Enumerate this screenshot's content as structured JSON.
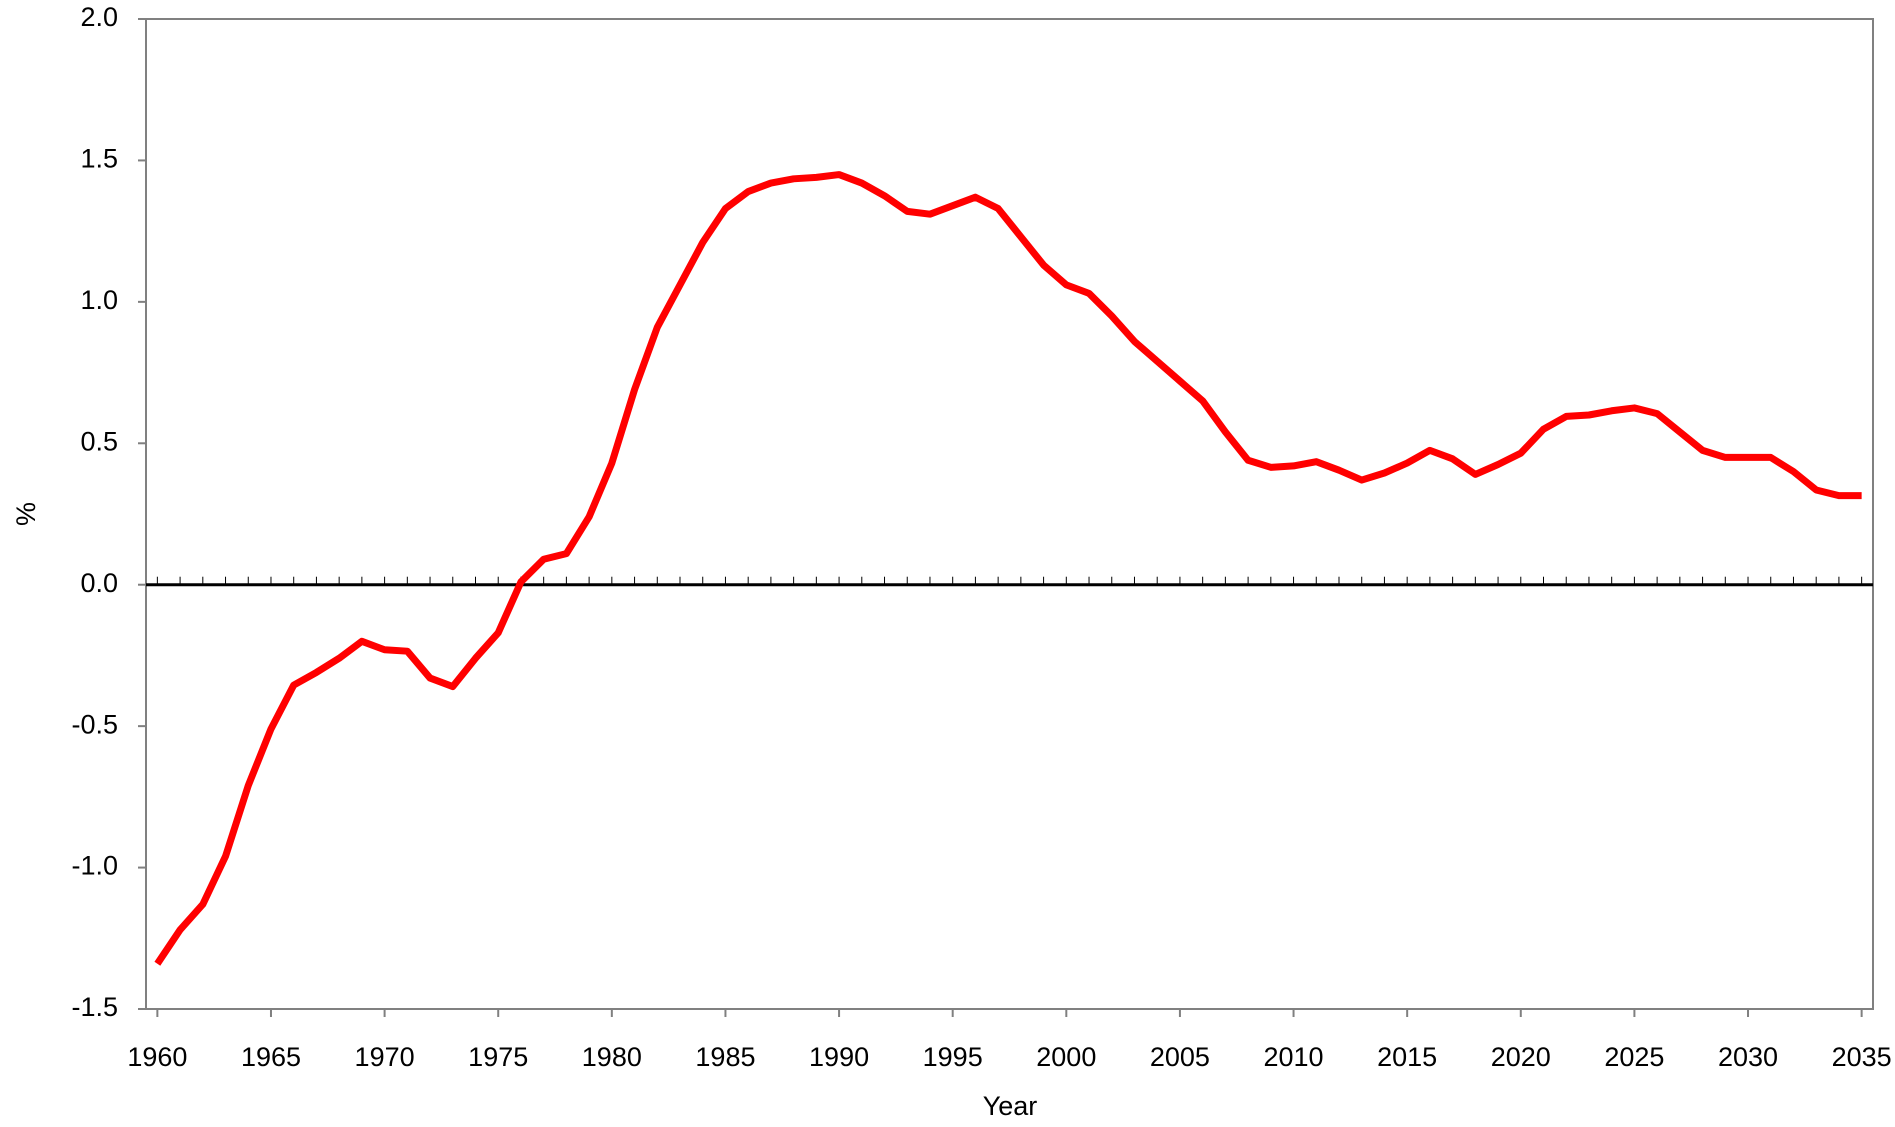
{
  "chart_data": {
    "type": "line",
    "x_label": "Year",
    "y_label": "%",
    "x": [
      1960,
      1961,
      1962,
      1963,
      1964,
      1965,
      1966,
      1967,
      1968,
      1969,
      1970,
      1971,
      1972,
      1973,
      1974,
      1975,
      1976,
      1977,
      1978,
      1979,
      1980,
      1981,
      1982,
      1983,
      1984,
      1985,
      1986,
      1987,
      1988,
      1989,
      1990,
      1991,
      1992,
      1993,
      1994,
      1995,
      1996,
      1997,
      1998,
      1999,
      2000,
      2001,
      2002,
      2003,
      2004,
      2005,
      2006,
      2007,
      2008,
      2009,
      2010,
      2011,
      2012,
      2013,
      2014,
      2015,
      2016,
      2017,
      2018,
      2019,
      2020,
      2021,
      2022,
      2023,
      2024,
      2025,
      2026,
      2027,
      2028,
      2029,
      2030,
      2031,
      2032,
      2033,
      2034,
      2035
    ],
    "series": [
      {
        "color": "#ff0000",
        "values": [
          -1.34,
          -1.22,
          -1.13,
          -0.96,
          -0.71,
          -0.51,
          -0.355,
          -0.31,
          -0.26,
          -0.2,
          -0.23,
          -0.235,
          -0.33,
          -0.36,
          -0.26,
          -0.17,
          0.01,
          0.09,
          0.11,
          0.24,
          0.43,
          0.69,
          0.91,
          1.06,
          1.21,
          1.33,
          1.39,
          1.42,
          1.435,
          1.44,
          1.45,
          1.42,
          1.375,
          1.32,
          1.31,
          1.34,
          1.37,
          1.33,
          1.23,
          1.13,
          1.06,
          1.03,
          0.95,
          0.86,
          0.79,
          0.72,
          0.65,
          0.54,
          0.44,
          0.415,
          0.42,
          0.435,
          0.405,
          0.37,
          0.395,
          0.43,
          0.475,
          0.445,
          0.39,
          0.425,
          0.465,
          0.55,
          0.595,
          0.6,
          0.615,
          0.625,
          0.605,
          0.54,
          0.475,
          0.45,
          0.45,
          0.45,
          0.4,
          0.335,
          0.315,
          0.315
        ]
      }
    ],
    "xlim": [
      1959.5,
      2035.5
    ],
    "xticks": [
      1960,
      1965,
      1970,
      1975,
      1980,
      1985,
      1990,
      1995,
      2000,
      2005,
      2010,
      2015,
      2020,
      2025,
      2030,
      2035
    ],
    "ylim": [
      -1.5,
      2.0
    ],
    "yticks": [
      -1.5,
      {
        "value": -1.0,
        "label": "-1.0"
      },
      -0.5,
      {
        "value": 0,
        "label": "0.0"
      },
      0.5,
      {
        "value": 1.0,
        "label": "1.0"
      },
      1.5,
      {
        "value": 2.0,
        "label": "2.0"
      }
    ],
    "grid": false
  }
}
